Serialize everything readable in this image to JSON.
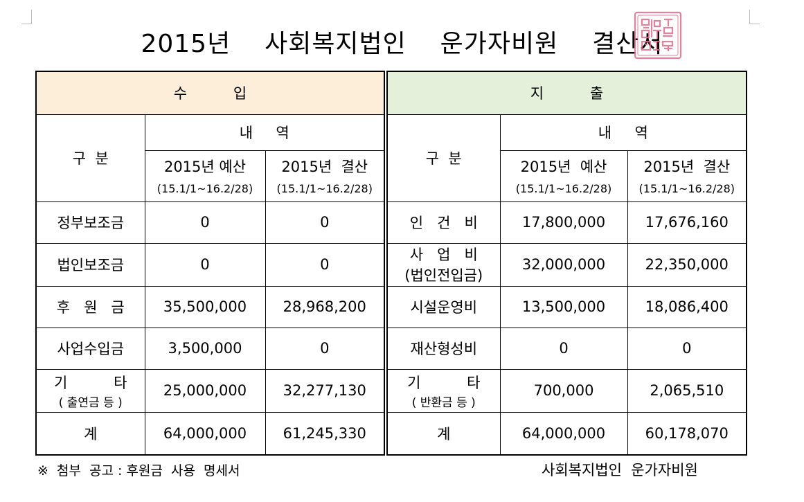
{
  "title": "2015년  사회복지법인  운가자비원  결산서",
  "seal_text": "대한불교조계종",
  "income": {
    "header": "수          입",
    "col_gubun": "구  분",
    "col_detail": "내     역",
    "col_budget": "2015년 예산",
    "col_settle": "2015년  결산",
    "period": "(15.1/1~16.2/28)",
    "rows": [
      {
        "label": "정부보조금",
        "sub": "",
        "budget": "0",
        "settle": "0"
      },
      {
        "label": "법인보조금",
        "sub": "",
        "budget": "0",
        "settle": "0"
      },
      {
        "label": "후   원   금",
        "sub": "",
        "budget": "35,500,000",
        "settle": "28,968,200"
      },
      {
        "label": "사업수입금",
        "sub": "",
        "budget": "3,500,000",
        "settle": "0"
      },
      {
        "label": "기          타",
        "sub": "( 출연금 등 )",
        "budget": "25,000,000",
        "settle": "32,277,130"
      },
      {
        "label": "계",
        "sub": "",
        "budget": "64,000,000",
        "settle": "61,245,330"
      }
    ]
  },
  "expense": {
    "header": "지          출",
    "col_gubun": "구  분",
    "col_detail": "내     역",
    "col_budget": "2015년  예산",
    "col_settle": "2015년  결산",
    "period": "(15.1/1~16.2/28)",
    "rows": [
      {
        "label": "인   건   비",
        "sub": "",
        "budget": "17,800,000",
        "settle": "17,676,160"
      },
      {
        "label": "사   업   비",
        "sub": "(법인전입금)",
        "budget": "32,000,000",
        "settle": "22,350,000"
      },
      {
        "label": "시설운영비",
        "sub": "",
        "budget": "13,500,000",
        "settle": "18,086,400"
      },
      {
        "label": "재산형성비",
        "sub": "",
        "budget": "0",
        "settle": "0"
      },
      {
        "label": "기          타",
        "sub": "( 반환금 등 )",
        "budget": "700,000",
        "settle": "2,065,510"
      },
      {
        "label": "계",
        "sub": "",
        "budget": "64,000,000",
        "settle": "60,178,070"
      }
    ]
  },
  "footer": {
    "note": "※  첨부  공고 : 후원금  사용  명세서",
    "org": "사회복지법인  운가자비원"
  },
  "colors": {
    "income_header_bg": "#fdeeda",
    "expense_header_bg": "#e4f0da",
    "seal": "#e06c8a"
  }
}
